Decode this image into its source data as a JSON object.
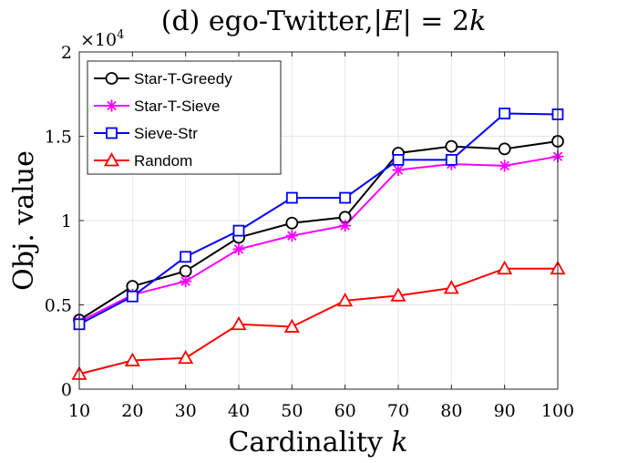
{
  "chart_data": {
    "type": "line",
    "title": {
      "prefix": "(d) ego-Twitter,",
      "bar_open": "|",
      "var_e": "E",
      "bar_close": "|",
      "eq": " = 2",
      "var_k": "k"
    },
    "xlabel": {
      "text": "Cardinality ",
      "var": "k"
    },
    "ylabel": "Obj. value",
    "y_multiplier": {
      "base": "×10",
      "exp": "4"
    },
    "x": [
      10,
      20,
      30,
      40,
      50,
      60,
      70,
      80,
      90,
      100
    ],
    "xlim": [
      10,
      100
    ],
    "ylim": [
      0,
      2
    ],
    "x_ticks": [
      "10",
      "20",
      "30",
      "40",
      "50",
      "60",
      "70",
      "80",
      "90",
      "100"
    ],
    "y_ticks": [
      {
        "value": 0,
        "label": "0"
      },
      {
        "value": 0.5,
        "label": "0.5"
      },
      {
        "value": 1,
        "label": "1"
      },
      {
        "value": 1.5,
        "label": "1.5"
      },
      {
        "value": 2,
        "label": "2"
      }
    ],
    "grid": true,
    "legend_position": "top-left",
    "series": [
      {
        "name": "Star-T-Greedy",
        "color": "#000000",
        "marker": "circle",
        "values": [
          0.41,
          0.61,
          0.7,
          0.9,
          0.985,
          1.02,
          1.4,
          1.44,
          1.425,
          1.47
        ]
      },
      {
        "name": "Star-T-Sieve",
        "color": "#ff00ff",
        "marker": "asterisk",
        "values": [
          0.4,
          0.56,
          0.64,
          0.83,
          0.91,
          0.97,
          1.3,
          1.335,
          1.325,
          1.38
        ]
      },
      {
        "name": "Sieve-Str",
        "color": "#0000ff",
        "marker": "square",
        "values": [
          0.385,
          0.55,
          0.785,
          0.94,
          1.135,
          1.135,
          1.36,
          1.36,
          1.635,
          1.63
        ]
      },
      {
        "name": "Random",
        "color": "#ff0000",
        "marker": "triangle",
        "values": [
          0.09,
          0.17,
          0.185,
          0.385,
          0.37,
          0.525,
          0.555,
          0.6,
          0.715,
          0.715
        ]
      }
    ]
  }
}
